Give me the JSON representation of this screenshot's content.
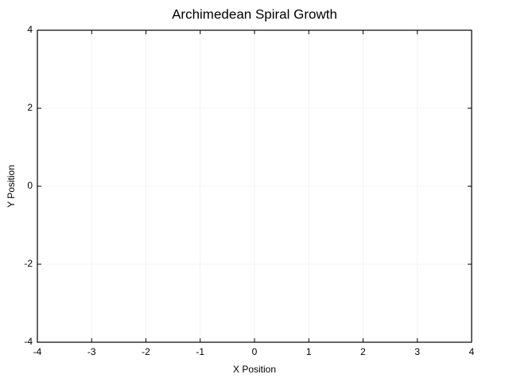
{
  "chart_data": {
    "type": "line",
    "title": "Archimedean Spiral Growth",
    "x_label": "X Position",
    "y_label": "Y Position",
    "xlim": [
      -4,
      4
    ],
    "xticks": [
      -4,
      -3,
      -2,
      -1,
      0,
      1,
      2,
      3,
      4
    ],
    "ylim": [
      -4,
      4
    ],
    "yticks": [
      -4,
      -2,
      0,
      2,
      4
    ],
    "grid": true,
    "series": []
  }
}
